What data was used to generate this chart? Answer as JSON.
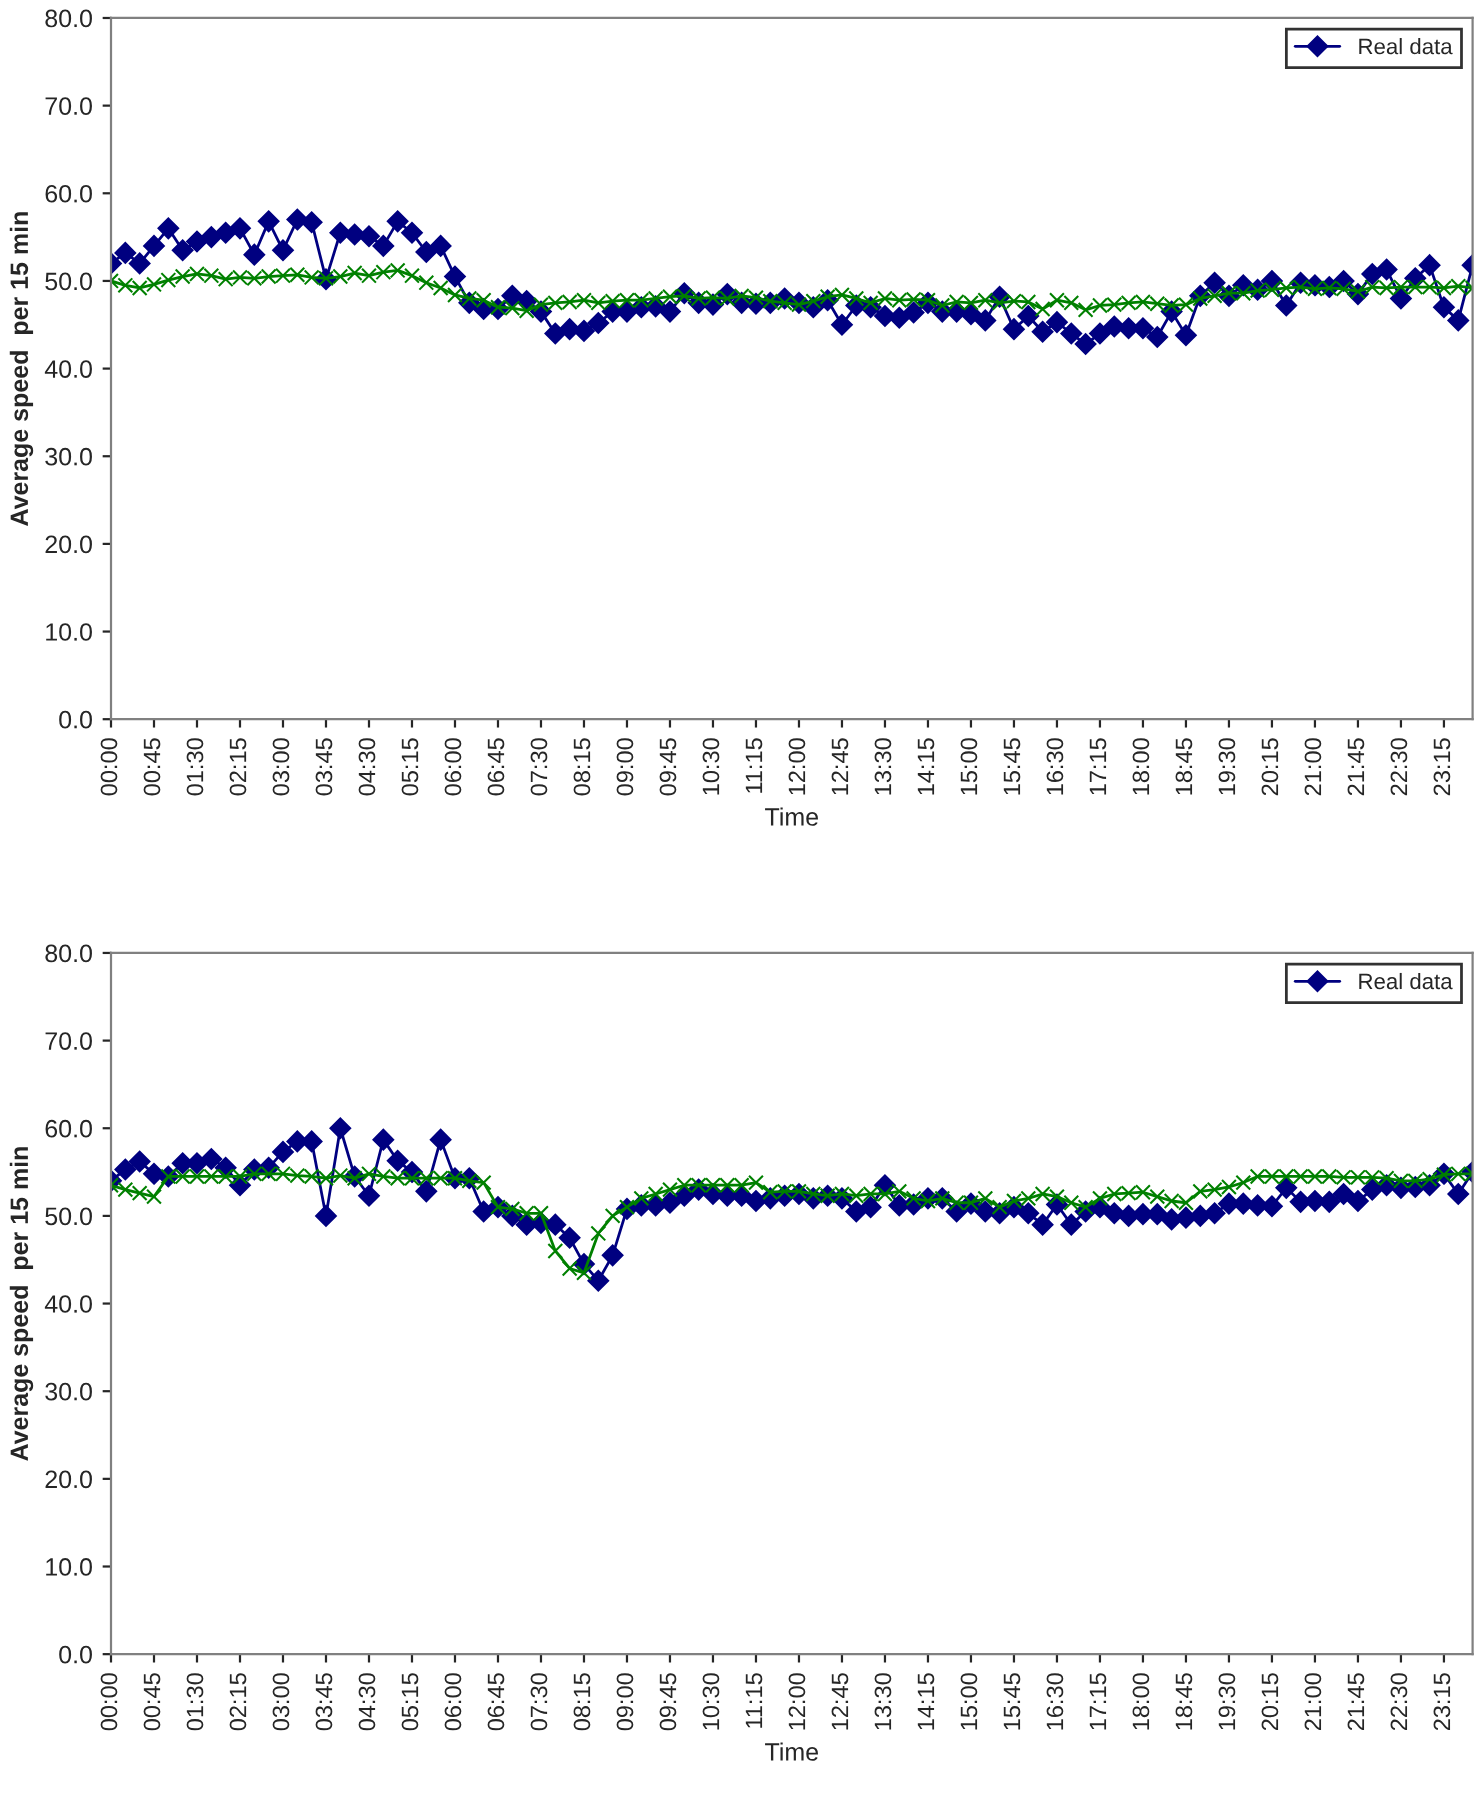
{
  "chart_data": [
    {
      "type": "line",
      "xlabel": "Time",
      "ylabel": "Average speed  per 15 min",
      "categories": [
        "00:00",
        null,
        null,
        "00:45",
        null,
        null,
        "01:30",
        null,
        null,
        "02:15",
        null,
        null,
        "03:00",
        null,
        null,
        "03:45",
        null,
        null,
        "04:30",
        null,
        null,
        "05:15",
        null,
        null,
        "06:00",
        null,
        null,
        "06:45",
        null,
        null,
        "07:30",
        null,
        null,
        "08:15",
        null,
        null,
        "09:00",
        null,
        null,
        "09:45",
        null,
        null,
        "10:30",
        null,
        null,
        "11:15",
        null,
        null,
        "12:00",
        null,
        null,
        "12:45",
        null,
        null,
        "13:30",
        null,
        null,
        "14:15",
        null,
        null,
        "15:00",
        null,
        null,
        "15:45",
        null,
        null,
        "16:30",
        null,
        null,
        "17:15",
        null,
        null,
        "18:00",
        null,
        null,
        "18:45",
        null,
        null,
        "19:30",
        null,
        null,
        "20:15",
        null,
        null,
        "21:00",
        null,
        null,
        "21:45",
        null,
        null,
        "22:30",
        null,
        null,
        "23:15",
        null,
        null
      ],
      "ylim": [
        0,
        80
      ],
      "yticks": [
        {
          "value": 0,
          "label": "0.0"
        },
        {
          "value": 10,
          "label": "10.0"
        },
        {
          "value": 20,
          "label": "20.0"
        },
        {
          "value": 30,
          "label": "30.0"
        },
        {
          "value": 40,
          "label": "40.0"
        },
        {
          "value": 50,
          "label": "50.0"
        },
        {
          "value": 60,
          "label": "60.0"
        },
        {
          "value": 70,
          "label": "70.0"
        },
        {
          "value": 80,
          "label": "80.0"
        }
      ],
      "legend": "top right",
      "grid": false,
      "series": [
        {
          "name": "Real data",
          "color": "#000080",
          "marker": "diamond",
          "values": [
            52,
            53.2,
            52,
            54,
            56,
            53.5,
            54.5,
            55,
            55.5,
            56,
            53,
            56.8,
            53.5,
            57,
            56.7,
            50.2,
            55.5,
            55.3,
            55.1,
            54,
            56.8,
            55.5,
            53.3,
            54,
            50.5,
            47.5,
            46.8,
            46.8,
            48.3,
            47.7,
            46.5,
            44,
            44.5,
            44.3,
            45.2,
            46.5,
            46.5,
            47,
            47.1,
            46.5,
            48.6,
            47.5,
            47.3,
            48.5,
            47.5,
            47.4,
            47.5,
            48,
            47.5,
            47,
            47.8,
            45,
            47.2,
            47,
            46,
            45.8,
            46.4,
            47.5,
            46.5,
            46.5,
            46.2,
            45.5,
            48.2,
            44.5,
            46,
            44.2,
            45.3,
            44,
            42.8,
            44,
            44.8,
            44.6,
            44.6,
            43.6,
            46.5,
            43.8,
            48.3,
            49.8,
            48.3,
            49.5,
            49,
            50,
            47.2,
            49.8,
            49.5,
            49.3,
            50,
            48.5,
            50.8,
            51.3,
            48,
            50.3,
            51.8,
            47,
            45.5,
            51.8
          ]
        },
        {
          "color": "#008000",
          "marker": "cross",
          "values": [
            50,
            49.5,
            49.2,
            49.6,
            50.1,
            50.5,
            50.8,
            50.6,
            50.2,
            50.4,
            50.3,
            50.5,
            50.6,
            50.7,
            50.4,
            50.3,
            50.5,
            50.9,
            50.6,
            51,
            51.2,
            50.6,
            49.8,
            49.2,
            48.4,
            48,
            47.8,
            47,
            46.9,
            46.6,
            47.3,
            47.5,
            47.6,
            47.8,
            47.5,
            47.7,
            47.8,
            47.8,
            48,
            48.2,
            48.3,
            48,
            48.1,
            48,
            48.3,
            48.1,
            47.7,
            47.5,
            47.3,
            47.7,
            48.2,
            48.4,
            48,
            47.5,
            48,
            47.8,
            47.9,
            47.8,
            47.2,
            47.6,
            47.5,
            47.8,
            47.5,
            47.7,
            47.6,
            46.8,
            47.8,
            47.5,
            46.7,
            47.2,
            47.3,
            47.5,
            47.6,
            47.4,
            47.2,
            47.3,
            48,
            48.3,
            48.6,
            48.6,
            48.9,
            49,
            49.2,
            49.3,
            49.1,
            49.2,
            49.1,
            48.8,
            49.3,
            49.2,
            49.3,
            49.3,
            49.3,
            49.2,
            49.4,
            49.2
          ]
        }
      ]
    },
    {
      "type": "line",
      "xlabel": "Time",
      "ylabel": "Average speed  per 15 min",
      "categories": [
        "00:00",
        null,
        null,
        "00:45",
        null,
        null,
        "01:30",
        null,
        null,
        "02:15",
        null,
        null,
        "03:00",
        null,
        null,
        "03:45",
        null,
        null,
        "04:30",
        null,
        null,
        "05:15",
        null,
        null,
        "06:00",
        null,
        null,
        "06:45",
        null,
        null,
        "07:30",
        null,
        null,
        "08:15",
        null,
        null,
        "09:00",
        null,
        null,
        "09:45",
        null,
        null,
        "10:30",
        null,
        null,
        "11:15",
        null,
        null,
        "12:00",
        null,
        null,
        "12:45",
        null,
        null,
        "13:30",
        null,
        null,
        "14:15",
        null,
        null,
        "15:00",
        null,
        null,
        "15:45",
        null,
        null,
        "16:30",
        null,
        null,
        "17:15",
        null,
        null,
        "18:00",
        null,
        null,
        "18:45",
        null,
        null,
        "19:30",
        null,
        null,
        "20:15",
        null,
        null,
        "21:00",
        null,
        null,
        "21:45",
        null,
        null,
        "22:30",
        null,
        null,
        "23:15",
        null,
        null
      ],
      "ylim": [
        0,
        80
      ],
      "yticks": [
        {
          "value": 0,
          "label": "0.0"
        },
        {
          "value": 10,
          "label": "10.0"
        },
        {
          "value": 20,
          "label": "20.0"
        },
        {
          "value": 30,
          "label": "30.0"
        },
        {
          "value": 40,
          "label": "40.0"
        },
        {
          "value": 50,
          "label": "50.0"
        },
        {
          "value": 60,
          "label": "60.0"
        },
        {
          "value": 70,
          "label": "70.0"
        },
        {
          "value": 80,
          "label": "80.0"
        }
      ],
      "legend": "top right",
      "grid": false,
      "series": [
        {
          "name": "Real data",
          "color": "#000080",
          "marker": "diamond",
          "values": [
            54,
            55.3,
            56.2,
            54.8,
            54.5,
            56,
            56,
            56.5,
            55.5,
            53.5,
            55.3,
            55.5,
            57.3,
            58.5,
            58.5,
            50,
            60,
            54.5,
            52.3,
            58.7,
            56.3,
            55,
            52.8,
            58.7,
            54.3,
            54.3,
            50.5,
            51,
            50,
            49,
            49.2,
            49,
            47.5,
            44.5,
            42.6,
            45.5,
            50.8,
            51.2,
            51.2,
            51.5,
            52.3,
            53,
            52.5,
            52.3,
            52.3,
            51.7,
            52,
            52.3,
            52.5,
            52,
            52.3,
            52,
            50.5,
            51,
            53.5,
            51.2,
            51.3,
            52,
            52,
            50.5,
            51.4,
            50.5,
            50.3,
            51,
            50.3,
            49,
            51.3,
            49,
            50.5,
            51,
            50.3,
            50,
            50.2,
            50.2,
            49.6,
            49.8,
            50,
            50.3,
            51.4,
            51.4,
            51.2,
            51.1,
            53.2,
            51.6,
            51.7,
            51.6,
            52.5,
            51.7,
            53,
            53.5,
            53.2,
            53.3,
            53.5,
            54.8,
            52.5,
            55
          ]
        },
        {
          "color": "#008000",
          "marker": "cross",
          "values": [
            53.5,
            53,
            52.6,
            52.2,
            54.5,
            54.5,
            54.5,
            54.5,
            54.5,
            54.5,
            54.8,
            54.8,
            54.8,
            54.6,
            54.5,
            54.3,
            54.6,
            54.3,
            54.8,
            54.5,
            54.3,
            54.3,
            54.3,
            54.3,
            54.3,
            54,
            53.8,
            51,
            50.8,
            50.3,
            50.3,
            46,
            44,
            43.5,
            48,
            50,
            51,
            52,
            52.5,
            53,
            53.5,
            53.5,
            53.5,
            53.5,
            53.5,
            53.8,
            52.7,
            52.8,
            52.8,
            52.5,
            52.3,
            52.5,
            52.3,
            52.5,
            52.5,
            52.8,
            52,
            51.7,
            52,
            51.5,
            51.5,
            52,
            51,
            51.7,
            52,
            52.5,
            52.2,
            51.5,
            51,
            52,
            52.5,
            52.6,
            52.7,
            52.2,
            51.7,
            51.5,
            52.8,
            53,
            53.3,
            53.8,
            54.5,
            54.5,
            54.5,
            54.5,
            54.5,
            54.5,
            54.4,
            54.4,
            54.4,
            54.3,
            54,
            54,
            54.2,
            54.7,
            54.8,
            54.8
          ]
        }
      ]
    }
  ]
}
